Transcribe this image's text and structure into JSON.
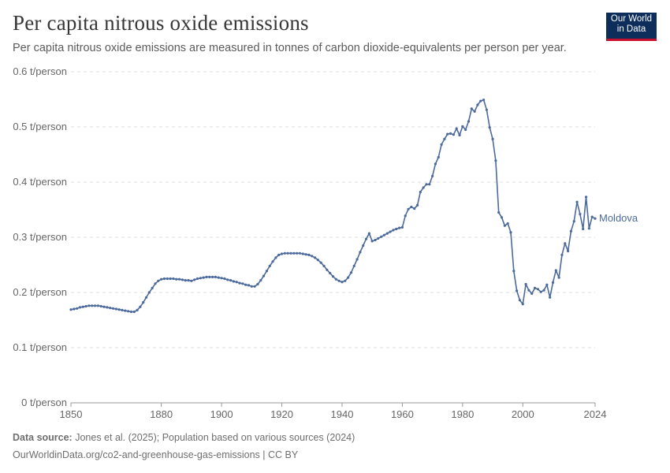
{
  "header": {
    "title": "Per capita nitrous oxide emissions",
    "subtitle": "Per capita nitrous oxide emissions are measured in tonnes of carbon dioxide-equivalents per person per year.",
    "logo_line1": "Our World",
    "logo_line2": "in Data"
  },
  "footer": {
    "source_label": "Data source:",
    "source_text": "Jones et al. (2025); Population based on various sources (2024)",
    "url_text": "OurWorldinData.org/co2-and-greenhouse-gas-emissions | CC BY"
  },
  "colors": {
    "series": "#4c6a9c",
    "grid": "#dddddd",
    "axis_text": "#666666",
    "logo_bg": "#0d2d5b",
    "logo_accent": "#c8102e"
  },
  "chart_data": {
    "type": "line",
    "title": "Per capita nitrous oxide emissions",
    "xlabel": "",
    "ylabel": "",
    "xlim": [
      1850,
      2024
    ],
    "ylim": [
      0,
      0.6
    ],
    "x_ticks": [
      1850,
      1880,
      1900,
      1920,
      1940,
      1960,
      1980,
      2000,
      2024
    ],
    "y_ticks": [
      {
        "value": 0,
        "label": "0 t/person"
      },
      {
        "value": 0.1,
        "label": "0.1 t/person"
      },
      {
        "value": 0.2,
        "label": "0.2 t/person"
      },
      {
        "value": 0.3,
        "label": "0.3 t/person"
      },
      {
        "value": 0.4,
        "label": "0.4 t/person"
      },
      {
        "value": 0.5,
        "label": "0.5 t/person"
      },
      {
        "value": 0.6,
        "label": "0.6 t/person"
      }
    ],
    "grid": true,
    "series": [
      {
        "name": "Moldova",
        "points": [
          [
            1850,
            0.169
          ],
          [
            1851,
            0.17
          ],
          [
            1852,
            0.171
          ],
          [
            1853,
            0.173
          ],
          [
            1854,
            0.174
          ],
          [
            1855,
            0.175
          ],
          [
            1856,
            0.176
          ],
          [
            1857,
            0.176
          ],
          [
            1858,
            0.176
          ],
          [
            1859,
            0.176
          ],
          [
            1860,
            0.175
          ],
          [
            1861,
            0.174
          ],
          [
            1862,
            0.173
          ],
          [
            1863,
            0.172
          ],
          [
            1864,
            0.171
          ],
          [
            1865,
            0.17
          ],
          [
            1866,
            0.169
          ],
          [
            1867,
            0.168
          ],
          [
            1868,
            0.167
          ],
          [
            1869,
            0.166
          ],
          [
            1870,
            0.165
          ],
          [
            1871,
            0.165
          ],
          [
            1872,
            0.168
          ],
          [
            1873,
            0.174
          ],
          [
            1874,
            0.182
          ],
          [
            1875,
            0.191
          ],
          [
            1876,
            0.2
          ],
          [
            1877,
            0.208
          ],
          [
            1878,
            0.216
          ],
          [
            1879,
            0.221
          ],
          [
            1880,
            0.224
          ],
          [
            1881,
            0.225
          ],
          [
            1882,
            0.225
          ],
          [
            1883,
            0.225
          ],
          [
            1884,
            0.225
          ],
          [
            1885,
            0.224
          ],
          [
            1886,
            0.224
          ],
          [
            1887,
            0.223
          ],
          [
            1888,
            0.222
          ],
          [
            1889,
            0.222
          ],
          [
            1890,
            0.221
          ],
          [
            1891,
            0.223
          ],
          [
            1892,
            0.225
          ],
          [
            1893,
            0.226
          ],
          [
            1894,
            0.227
          ],
          [
            1895,
            0.228
          ],
          [
            1896,
            0.228
          ],
          [
            1897,
            0.228
          ],
          [
            1898,
            0.228
          ],
          [
            1899,
            0.227
          ],
          [
            1900,
            0.226
          ],
          [
            1901,
            0.225
          ],
          [
            1902,
            0.223
          ],
          [
            1903,
            0.222
          ],
          [
            1904,
            0.22
          ],
          [
            1905,
            0.219
          ],
          [
            1906,
            0.217
          ],
          [
            1907,
            0.216
          ],
          [
            1908,
            0.214
          ],
          [
            1909,
            0.213
          ],
          [
            1910,
            0.211
          ],
          [
            1911,
            0.211
          ],
          [
            1912,
            0.215
          ],
          [
            1913,
            0.222
          ],
          [
            1914,
            0.23
          ],
          [
            1915,
            0.239
          ],
          [
            1916,
            0.248
          ],
          [
            1917,
            0.256
          ],
          [
            1918,
            0.263
          ],
          [
            1919,
            0.268
          ],
          [
            1920,
            0.27
          ],
          [
            1921,
            0.271
          ],
          [
            1922,
            0.271
          ],
          [
            1923,
            0.271
          ],
          [
            1924,
            0.271
          ],
          [
            1925,
            0.271
          ],
          [
            1926,
            0.271
          ],
          [
            1927,
            0.27
          ],
          [
            1928,
            0.269
          ],
          [
            1929,
            0.268
          ],
          [
            1930,
            0.266
          ],
          [
            1931,
            0.263
          ],
          [
            1932,
            0.259
          ],
          [
            1933,
            0.254
          ],
          [
            1934,
            0.248
          ],
          [
            1935,
            0.241
          ],
          [
            1936,
            0.235
          ],
          [
            1937,
            0.229
          ],
          [
            1938,
            0.224
          ],
          [
            1939,
            0.221
          ],
          [
            1940,
            0.219
          ],
          [
            1941,
            0.221
          ],
          [
            1942,
            0.227
          ],
          [
            1943,
            0.236
          ],
          [
            1944,
            0.248
          ],
          [
            1945,
            0.26
          ],
          [
            1946,
            0.273
          ],
          [
            1947,
            0.285
          ],
          [
            1948,
            0.297
          ],
          [
            1949,
            0.307
          ],
          [
            1950,
            0.293
          ],
          [
            1951,
            0.295
          ],
          [
            1952,
            0.298
          ],
          [
            1953,
            0.301
          ],
          [
            1954,
            0.304
          ],
          [
            1955,
            0.307
          ],
          [
            1956,
            0.31
          ],
          [
            1957,
            0.313
          ],
          [
            1958,
            0.315
          ],
          [
            1959,
            0.317
          ],
          [
            1960,
            0.318
          ],
          [
            1961,
            0.339
          ],
          [
            1962,
            0.351
          ],
          [
            1963,
            0.355
          ],
          [
            1964,
            0.352
          ],
          [
            1965,
            0.358
          ],
          [
            1966,
            0.382
          ],
          [
            1967,
            0.39
          ],
          [
            1968,
            0.396
          ],
          [
            1969,
            0.396
          ],
          [
            1970,
            0.411
          ],
          [
            1971,
            0.433
          ],
          [
            1972,
            0.445
          ],
          [
            1973,
            0.468
          ],
          [
            1974,
            0.478
          ],
          [
            1975,
            0.487
          ],
          [
            1976,
            0.488
          ],
          [
            1977,
            0.486
          ],
          [
            1978,
            0.497
          ],
          [
            1979,
            0.485
          ],
          [
            1980,
            0.501
          ],
          [
            1981,
            0.495
          ],
          [
            1982,
            0.51
          ],
          [
            1983,
            0.533
          ],
          [
            1984,
            0.528
          ],
          [
            1985,
            0.54
          ],
          [
            1986,
            0.547
          ],
          [
            1987,
            0.549
          ],
          [
            1988,
            0.531
          ],
          [
            1989,
            0.499
          ],
          [
            1990,
            0.478
          ],
          [
            1991,
            0.439
          ],
          [
            1992,
            0.345
          ],
          [
            1993,
            0.336
          ],
          [
            1994,
            0.321
          ],
          [
            1995,
            0.325
          ],
          [
            1996,
            0.309
          ],
          [
            1997,
            0.239
          ],
          [
            1998,
            0.203
          ],
          [
            1999,
            0.186
          ],
          [
            2000,
            0.179
          ],
          [
            2001,
            0.215
          ],
          [
            2002,
            0.204
          ],
          [
            2003,
            0.198
          ],
          [
            2004,
            0.208
          ],
          [
            2005,
            0.206
          ],
          [
            2006,
            0.201
          ],
          [
            2007,
            0.204
          ],
          [
            2008,
            0.214
          ],
          [
            2009,
            0.191
          ],
          [
            2010,
            0.218
          ],
          [
            2011,
            0.24
          ],
          [
            2012,
            0.227
          ],
          [
            2013,
            0.268
          ],
          [
            2014,
            0.289
          ],
          [
            2015,
            0.275
          ],
          [
            2016,
            0.311
          ],
          [
            2017,
            0.329
          ],
          [
            2018,
            0.364
          ],
          [
            2019,
            0.342
          ],
          [
            2020,
            0.315
          ],
          [
            2021,
            0.373
          ],
          [
            2022,
            0.316
          ],
          [
            2023,
            0.337
          ],
          [
            2024,
            0.334
          ]
        ]
      }
    ]
  }
}
